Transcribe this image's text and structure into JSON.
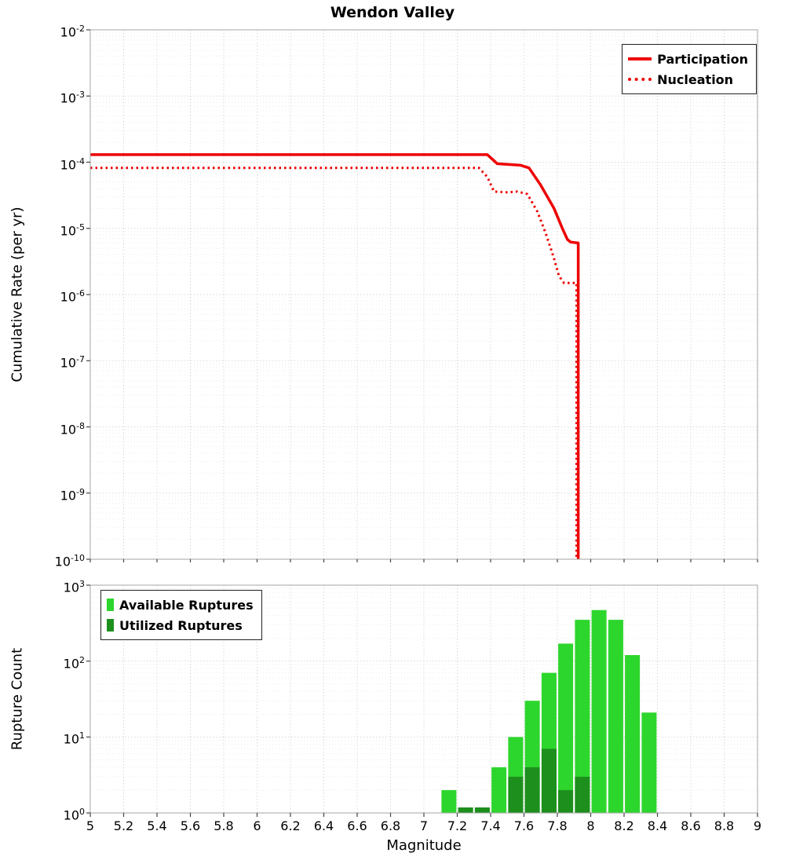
{
  "title": "Wendon Valley",
  "axes": {
    "x_label": "Magnitude",
    "x_tick_values": [
      5,
      5.2,
      5.4,
      5.6,
      5.8,
      6,
      6.2,
      6.4,
      6.6,
      6.8,
      7,
      7.2,
      7.4,
      7.6,
      7.8,
      8,
      8.2,
      8.4,
      8.6,
      8.8,
      9
    ],
    "x_tick_labels": [
      "5",
      "5.2",
      "5.4",
      "5.6",
      "5.8",
      "6",
      "6.2",
      "6.4",
      "6.6",
      "6.8",
      "7",
      "7.2",
      "7.4",
      "7.6",
      "7.8",
      "8",
      "8.2",
      "8.4",
      "8.6",
      "8.8",
      "9"
    ],
    "top_y_label": "Cumulative Rate (per yr)",
    "top_y_tick_exponents": [
      -2,
      -3,
      -4,
      -5,
      -6,
      -7,
      -8,
      -9,
      -10
    ],
    "bottom_y_label": "Rupture Count",
    "bottom_y_tick_exponents": [
      3,
      2,
      1,
      0
    ]
  },
  "colors": {
    "participation": "#ee0000",
    "nucleation": "#ee0000",
    "available": "#2dd62d",
    "utilized": "#1d8f1d",
    "grid_major": "#d9d9d9",
    "grid_minor": "#ececec",
    "plot_border": "#a6a6a6",
    "tick": "#444444"
  },
  "chart_data": [
    {
      "type": "line",
      "title": "Wendon Valley",
      "xlabel": "Magnitude",
      "ylabel": "Cumulative Rate (per yr)",
      "xlim": [
        5,
        9
      ],
      "ylim": [
        1e-10,
        0.01
      ],
      "y_scale": "log",
      "grid": true,
      "legend_position": "top-right",
      "series": [
        {
          "name": "Participation",
          "color": "#ee0000",
          "line_style": "solid",
          "points": [
            [
              5.0,
              0.00013
            ],
            [
              6.0,
              0.00013
            ],
            [
              7.0,
              0.00013
            ],
            [
              7.38,
              0.00013
            ],
            [
              7.44,
              9.5e-05
            ],
            [
              7.58,
              9e-05
            ],
            [
              7.63,
              8.2e-05
            ],
            [
              7.7,
              4.5e-05
            ],
            [
              7.78,
              2e-05
            ],
            [
              7.83,
              1e-05
            ],
            [
              7.86,
              6.8e-06
            ],
            [
              7.88,
              6.2e-06
            ],
            [
              7.925,
              6e-06
            ],
            [
              7.925,
              1e-10
            ]
          ]
        },
        {
          "name": "Nucleation",
          "color": "#ee0000",
          "line_style": "dotted",
          "points": [
            [
              5.0,
              8.2e-05
            ],
            [
              6.0,
              8.2e-05
            ],
            [
              7.0,
              8.2e-05
            ],
            [
              7.33,
              8.2e-05
            ],
            [
              7.38,
              6e-05
            ],
            [
              7.42,
              3.6e-05
            ],
            [
              7.5,
              3.5e-05
            ],
            [
              7.56,
              3.6e-05
            ],
            [
              7.62,
              3.3e-05
            ],
            [
              7.68,
              1.8e-05
            ],
            [
              7.73,
              8.5e-06
            ],
            [
              7.78,
              3.5e-06
            ],
            [
              7.81,
              1.9e-06
            ],
            [
              7.84,
              1.5e-06
            ],
            [
              7.915,
              1.5e-06
            ],
            [
              7.915,
              1e-10
            ]
          ]
        }
      ]
    },
    {
      "type": "bar",
      "xlabel": "Magnitude",
      "ylabel": "Rupture Count",
      "xlim": [
        5,
        9
      ],
      "ylim": [
        1,
        1000
      ],
      "y_scale": "log",
      "bar_width": 0.1,
      "grid": true,
      "legend_position": "top-left",
      "categories": [
        7.15,
        7.25,
        7.35,
        7.45,
        7.55,
        7.65,
        7.75,
        7.85,
        7.95,
        8.05,
        8.15,
        8.25,
        8.35
      ],
      "series": [
        {
          "name": "Available Ruptures",
          "color": "#2dd62d",
          "values": [
            2,
            1,
            1,
            4,
            10,
            30,
            70,
            170,
            350,
            470,
            350,
            120,
            21
          ]
        },
        {
          "name": "Utilized Ruptures",
          "color": "#1d8f1d",
          "values": [
            0,
            1,
            1,
            0,
            3,
            4,
            7,
            2,
            3,
            0,
            0,
            0,
            0
          ]
        }
      ]
    }
  ]
}
